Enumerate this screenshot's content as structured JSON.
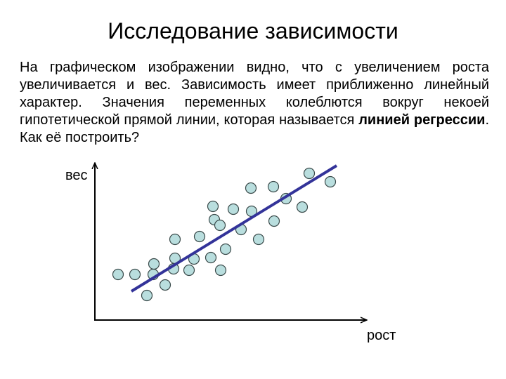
{
  "slide": {
    "title": "Исследование зависимости",
    "text_before": "На графическом изображении видно, что с увеличением роста увеличивается и вес. Зависимость имеет приближенно линейный характер. Значения переменных колеблются вокруг некоей гипотетической прямой линии, которая называется ",
    "text_bold": "линией регрессии",
    "text_after": ". Как её построить?",
    "y_axis_label": "вес",
    "x_axis_label": "рост"
  }
}
